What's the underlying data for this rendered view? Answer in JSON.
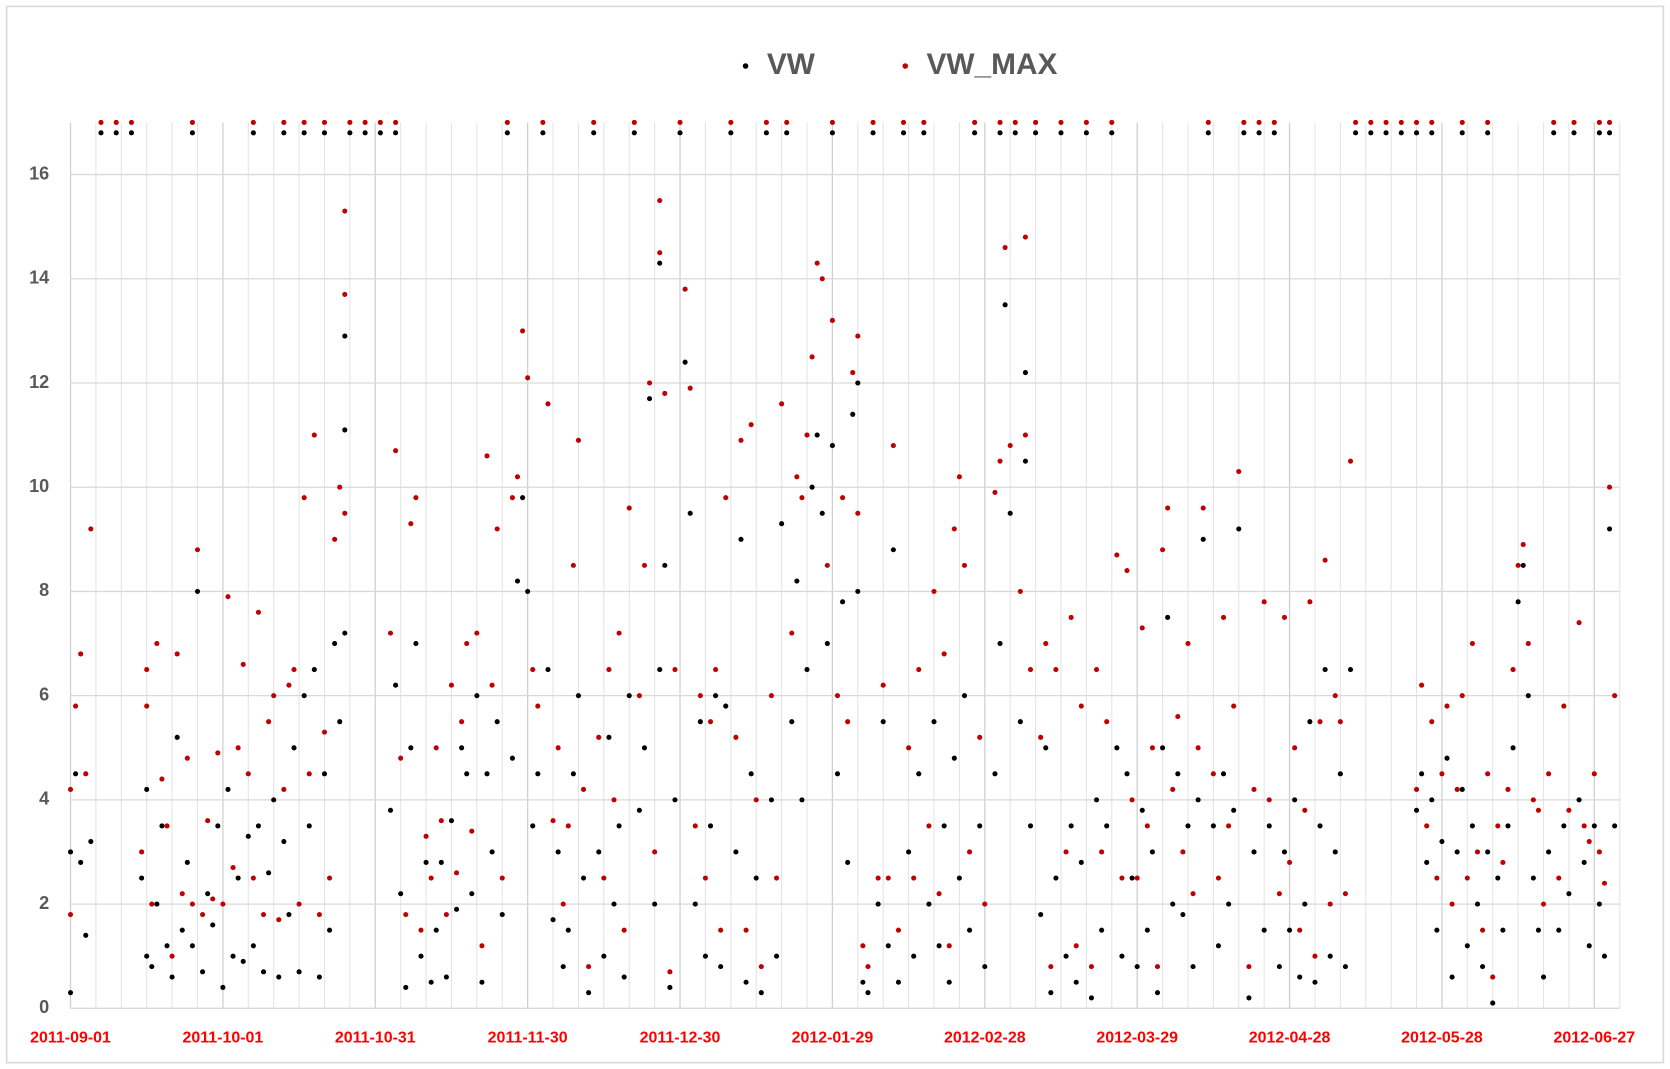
{
  "chart_data": {
    "type": "scatter",
    "x": [
      "2011-09-01",
      "2011-09-01",
      "2011-09-02",
      "2011-09-03",
      "2011-09-04",
      "2011-09-05",
      "2011-09-07",
      "2011-09-10",
      "2011-09-13",
      "2011-09-15",
      "2011-09-16",
      "2011-09-16",
      "2011-09-17",
      "2011-09-18",
      "2011-09-19",
      "2011-09-20",
      "2011-09-21",
      "2011-09-22",
      "2011-09-23",
      "2011-09-25",
      "2011-09-24",
      "2011-09-25",
      "2011-09-26",
      "2011-09-27",
      "2011-09-28",
      "2011-09-29",
      "2011-09-30",
      "2011-10-01",
      "2011-10-02",
      "2011-10-03",
      "2011-10-04",
      "2011-10-05",
      "2011-10-06",
      "2011-10-07",
      "2011-10-07",
      "2011-10-08",
      "2011-10-09",
      "2011-10-10",
      "2011-10-11",
      "2011-10-12",
      "2011-10-13",
      "2011-10-13",
      "2011-10-14",
      "2011-10-15",
      "2011-10-16",
      "2011-10-17",
      "2011-10-17",
      "2011-10-18",
      "2011-10-19",
      "2011-10-20",
      "2011-10-21",
      "2011-10-21",
      "2011-10-22",
      "2011-10-23",
      "2011-10-24",
      "2011-10-25",
      "2011-10-25",
      "2011-10-25",
      "2011-10-26",
      "2011-10-29",
      "2011-11-01",
      "2011-11-03",
      "2011-11-04",
      "2011-11-04",
      "2011-11-05",
      "2011-11-06",
      "2011-11-07",
      "2011-11-08",
      "2011-11-09",
      "2011-11-10",
      "2011-11-11",
      "2011-11-12",
      "2011-11-13",
      "2011-11-14",
      "2011-11-15",
      "2011-11-16",
      "2011-11-17",
      "2011-11-18",
      "2011-11-19",
      "2011-11-20",
      "2011-11-21",
      "2011-11-22",
      "2011-11-23",
      "2011-11-24",
      "2011-11-25",
      "2011-11-26",
      "2011-11-27",
      "2011-11-28",
      "2011-11-29",
      "2011-11-30",
      "2011-12-01",
      "2011-12-02",
      "2011-12-03",
      "2011-12-04",
      "2011-12-05",
      "2011-12-06",
      "2011-12-07",
      "2011-12-08",
      "2011-12-09",
      "2011-12-10",
      "2011-12-11",
      "2011-12-12",
      "2011-12-13",
      "2011-12-14",
      "2011-12-15",
      "2011-12-16",
      "2011-12-17",
      "2011-12-18",
      "2011-12-19",
      "2011-12-20",
      "2011-12-21",
      "2011-12-22",
      "2011-12-23",
      "2011-12-24",
      "2011-12-25",
      "2011-12-26",
      "2011-12-26",
      "2011-12-27",
      "2011-12-28",
      "2011-12-29",
      "2011-12-30",
      "2011-12-31",
      "2012-01-01",
      "2012-01-02",
      "2012-01-03",
      "2012-01-04",
      "2012-01-05",
      "2012-01-06",
      "2012-01-07",
      "2012-01-08",
      "2012-01-09",
      "2012-01-10",
      "2012-01-11",
      "2012-01-12",
      "2012-01-13",
      "2012-01-14",
      "2012-01-15",
      "2012-01-16",
      "2012-01-17",
      "2012-01-18",
      "2012-01-19",
      "2012-01-20",
      "2012-01-21",
      "2012-01-22",
      "2012-01-23",
      "2012-01-24",
      "2012-01-25",
      "2012-01-26",
      "2012-01-27",
      "2012-01-28",
      "2012-01-29",
      "2012-01-29",
      "2012-01-30",
      "2012-01-31",
      "2012-02-01",
      "2012-02-02",
      "2012-02-03",
      "2012-02-03",
      "2012-02-04",
      "2012-02-05",
      "2012-02-06",
      "2012-02-07",
      "2012-02-08",
      "2012-02-09",
      "2012-02-10",
      "2012-02-11",
      "2012-02-12",
      "2012-02-13",
      "2012-02-14",
      "2012-02-15",
      "2012-02-16",
      "2012-02-17",
      "2012-02-18",
      "2012-02-19",
      "2012-02-20",
      "2012-02-21",
      "2012-02-22",
      "2012-02-23",
      "2012-02-24",
      "2012-02-25",
      "2012-02-26",
      "2012-02-27",
      "2012-02-28",
      "2012-03-01",
      "2012-03-02",
      "2012-03-02",
      "2012-03-03",
      "2012-03-04",
      "2012-03-05",
      "2012-03-06",
      "2012-03-07",
      "2012-03-07",
      "2012-03-08",
      "2012-03-09",
      "2012-03-10",
      "2012-03-11",
      "2012-03-12",
      "2012-03-13",
      "2012-03-14",
      "2012-03-15",
      "2012-03-16",
      "2012-03-17",
      "2012-03-18",
      "2012-03-19",
      "2012-03-20",
      "2012-03-21",
      "2012-03-22",
      "2012-03-23",
      "2012-03-24",
      "2012-03-25",
      "2012-03-26",
      "2012-03-27",
      "2012-03-28",
      "2012-03-29",
      "2012-03-30",
      "2012-03-31",
      "2012-04-01",
      "2012-04-02",
      "2012-04-03",
      "2012-04-04",
      "2012-04-05",
      "2012-04-06",
      "2012-04-07",
      "2012-04-08",
      "2012-04-09",
      "2012-04-10",
      "2012-04-11",
      "2012-04-12",
      "2012-04-13",
      "2012-04-14",
      "2012-04-15",
      "2012-04-16",
      "2012-04-17",
      "2012-04-18",
      "2012-04-19",
      "2012-04-20",
      "2012-04-21",
      "2012-04-22",
      "2012-04-23",
      "2012-04-24",
      "2012-04-25",
      "2012-04-26",
      "2012-04-27",
      "2012-04-28",
      "2012-04-29",
      "2012-04-30",
      "2012-05-01",
      "2012-05-02",
      "2012-05-03",
      "2012-05-04",
      "2012-05-05",
      "2012-05-06",
      "2012-05-07",
      "2012-05-08",
      "2012-05-09",
      "2012-05-10",
      "2012-05-11",
      "2012-05-14",
      "2012-05-17",
      "2012-05-20",
      "2012-05-23",
      "2012-05-23",
      "2012-05-24",
      "2012-05-25",
      "2012-05-26",
      "2012-05-26",
      "2012-05-27",
      "2012-05-28",
      "2012-05-29",
      "2012-05-30",
      "2012-05-31",
      "2012-06-01",
      "2012-06-01",
      "2012-06-02",
      "2012-06-03",
      "2012-06-04",
      "2012-06-05",
      "2012-06-06",
      "2012-06-06",
      "2012-06-07",
      "2012-06-08",
      "2012-06-09",
      "2012-06-10",
      "2012-06-11",
      "2012-06-12",
      "2012-06-13",
      "2012-06-14",
      "2012-06-15",
      "2012-06-16",
      "2012-06-17",
      "2012-06-18",
      "2012-06-19",
      "2012-06-20",
      "2012-06-21",
      "2012-06-22",
      "2012-06-23",
      "2012-06-24",
      "2012-06-25",
      "2012-06-26",
      "2012-06-27",
      "2012-06-28",
      "2012-06-28",
      "2012-06-29",
      "2012-06-30",
      "2012-06-30",
      "2012-07-01"
    ],
    "series": [
      {
        "name": "VW",
        "color": "#000000",
        "values": [
          0.3,
          3.0,
          4.5,
          2.8,
          1.4,
          3.2,
          16.8,
          16.8,
          16.8,
          2.5,
          1.0,
          4.2,
          0.8,
          2.0,
          3.5,
          1.2,
          0.6,
          5.2,
          1.5,
          16.8,
          2.8,
          1.2,
          8.0,
          0.7,
          2.2,
          1.6,
          3.5,
          0.4,
          4.2,
          1.0,
          2.5,
          0.9,
          3.3,
          16.8,
          1.2,
          3.5,
          0.7,
          2.6,
          4.0,
          0.6,
          16.8,
          3.2,
          1.8,
          5.0,
          0.7,
          16.8,
          6.0,
          3.5,
          6.5,
          0.6,
          4.5,
          16.8,
          1.5,
          7.0,
          5.5,
          12.9,
          11.1,
          7.2,
          16.8,
          16.8,
          16.8,
          3.8,
          6.2,
          16.8,
          2.2,
          0.4,
          5.0,
          7.0,
          1.0,
          2.8,
          0.5,
          1.5,
          2.8,
          0.6,
          3.6,
          1.9,
          5.0,
          4.5,
          2.2,
          6.0,
          0.5,
          4.5,
          3.0,
          5.5,
          1.8,
          16.8,
          4.8,
          8.2,
          9.8,
          8.0,
          3.5,
          4.5,
          16.8,
          6.5,
          1.7,
          3.0,
          0.8,
          1.5,
          4.5,
          6.0,
          2.5,
          0.3,
          16.8,
          3.0,
          1.0,
          5.2,
          2.0,
          3.5,
          0.6,
          6.0,
          16.8,
          3.8,
          5.0,
          11.7,
          2.0,
          14.3,
          6.5,
          8.5,
          0.4,
          4.0,
          16.8,
          12.4,
          9.5,
          2.0,
          5.5,
          1.0,
          3.5,
          6.0,
          0.8,
          5.8,
          16.8,
          3.0,
          9.0,
          0.5,
          4.5,
          2.5,
          0.3,
          16.8,
          4.0,
          1.0,
          9.3,
          16.8,
          5.5,
          8.2,
          4.0,
          6.5,
          10.0,
          11.0,
          9.5,
          7.0,
          16.8,
          10.8,
          4.5,
          7.8,
          2.8,
          11.4,
          12.0,
          8.0,
          0.5,
          0.3,
          16.8,
          2.0,
          5.5,
          1.2,
          8.8,
          0.5,
          16.8,
          3.0,
          1.0,
          4.5,
          16.8,
          2.0,
          5.5,
          1.2,
          3.5,
          0.5,
          4.8,
          2.5,
          6.0,
          1.5,
          16.8,
          3.5,
          0.8,
          4.5,
          16.8,
          7.0,
          13.5,
          9.5,
          16.8,
          5.5,
          12.2,
          10.5,
          3.5,
          16.8,
          1.8,
          5.0,
          0.3,
          2.5,
          16.8,
          1.0,
          3.5,
          0.5,
          2.8,
          16.8,
          0.2,
          4.0,
          1.5,
          3.5,
          16.8,
          5.0,
          1.0,
          4.5,
          2.5,
          0.8,
          3.8,
          1.5,
          3.0,
          0.3,
          5.0,
          7.5,
          2.0,
          4.5,
          1.8,
          3.5,
          0.8,
          4.0,
          9.0,
          16.8,
          3.5,
          1.2,
          4.5,
          2.0,
          3.8,
          9.2,
          16.8,
          0.2,
          3.0,
          16.8,
          1.5,
          3.5,
          16.8,
          0.8,
          3.0,
          1.5,
          4.0,
          0.6,
          2.0,
          5.5,
          0.5,
          3.5,
          6.5,
          1.0,
          3.0,
          4.5,
          0.8,
          6.5,
          16.8,
          16.8,
          16.8,
          16.8,
          16.8,
          3.8,
          4.5,
          2.8,
          16.8,
          4.0,
          1.5,
          3.2,
          4.8,
          0.6,
          3.0,
          16.8,
          4.2,
          1.2,
          3.5,
          2.0,
          0.8,
          16.8,
          3.0,
          0.1,
          2.5,
          1.5,
          3.5,
          5.0,
          7.8,
          8.5,
          6.0,
          2.5,
          1.5,
          0.6,
          3.0,
          16.8,
          1.5,
          3.5,
          2.2,
          16.8,
          4.0,
          2.8,
          1.2,
          3.5,
          16.8,
          2.0,
          1.0,
          9.2,
          16.8,
          3.5
        ]
      },
      {
        "name": "VW_MAX",
        "color": "#c00000",
        "values": [
          1.8,
          4.2,
          5.8,
          6.8,
          4.5,
          9.2,
          17,
          17,
          17,
          3.0,
          6.5,
          5.8,
          2.0,
          7.0,
          4.4,
          3.5,
          1.0,
          6.8,
          2.2,
          17,
          4.8,
          2.0,
          8.8,
          1.8,
          3.6,
          2.1,
          4.9,
          2.0,
          7.9,
          2.7,
          5.0,
          6.6,
          4.5,
          17,
          2.5,
          7.6,
          1.8,
          5.5,
          6.0,
          1.7,
          17,
          4.2,
          6.2,
          6.5,
          2.0,
          17,
          9.8,
          4.5,
          11.0,
          1.8,
          5.3,
          17,
          2.5,
          9.0,
          10.0,
          15.3,
          13.7,
          9.5,
          17,
          17,
          17,
          7.2,
          10.7,
          17,
          4.8,
          1.8,
          9.3,
          9.8,
          1.5,
          3.3,
          2.5,
          5.0,
          3.6,
          1.8,
          6.2,
          2.6,
          5.5,
          7.0,
          3.4,
          7.2,
          1.2,
          10.6,
          6.2,
          9.2,
          2.5,
          17,
          9.8,
          10.2,
          13.0,
          12.1,
          6.5,
          5.8,
          17,
          11.6,
          3.6,
          5.0,
          2.0,
          3.5,
          8.5,
          10.9,
          4.2,
          0.8,
          17,
          5.2,
          2.5,
          6.5,
          4.0,
          7.2,
          1.5,
          9.6,
          17,
          6.0,
          8.5,
          12.0,
          3.0,
          15.5,
          14.5,
          11.8,
          0.7,
          6.5,
          17,
          13.8,
          11.9,
          3.5,
          6.0,
          2.5,
          5.5,
          6.5,
          1.5,
          9.8,
          17,
          5.2,
          10.9,
          1.5,
          11.2,
          4.0,
          0.8,
          17,
          6.0,
          2.5,
          11.6,
          17,
          7.2,
          10.2,
          9.8,
          11.0,
          12.5,
          14.3,
          14.0,
          8.5,
          17,
          13.2,
          6.0,
          9.8,
          5.5,
          12.2,
          12.9,
          9.5,
          1.2,
          0.8,
          17,
          2.5,
          6.2,
          2.5,
          10.8,
          1.5,
          17,
          5.0,
          2.5,
          6.5,
          17,
          3.5,
          8.0,
          2.2,
          6.8,
          1.2,
          9.2,
          10.2,
          8.5,
          3.0,
          17,
          5.2,
          2.0,
          9.9,
          17,
          10.5,
          14.6,
          10.8,
          17,
          8.0,
          14.8,
          11.0,
          6.5,
          17,
          5.2,
          7.0,
          0.8,
          6.5,
          17,
          3.0,
          7.5,
          1.2,
          5.8,
          17,
          0.8,
          6.5,
          3.0,
          5.5,
          17,
          8.7,
          2.5,
          8.4,
          4.0,
          2.5,
          7.3,
          3.5,
          5.0,
          0.8,
          8.8,
          9.6,
          4.2,
          5.6,
          3.0,
          7.0,
          2.2,
          5.0,
          9.6,
          17,
          4.5,
          2.5,
          7.5,
          3.5,
          5.8,
          10.3,
          17,
          0.8,
          4.2,
          17,
          7.8,
          4.0,
          17,
          2.2,
          7.5,
          2.8,
          5.0,
          1.5,
          3.8,
          7.8,
          1.0,
          5.5,
          8.6,
          2.0,
          6.0,
          5.5,
          2.2,
          10.5,
          17,
          17,
          17,
          17,
          17,
          4.2,
          6.2,
          3.5,
          17,
          5.5,
          2.5,
          4.5,
          5.8,
          2.0,
          4.2,
          17,
          6.0,
          2.5,
          7.0,
          3.0,
          1.5,
          17,
          4.5,
          0.6,
          3.5,
          2.8,
          4.2,
          6.5,
          8.5,
          8.9,
          7.0,
          4.0,
          3.8,
          2.0,
          4.5,
          17,
          2.5,
          5.8,
          3.8,
          17,
          7.4,
          3.5,
          3.2,
          4.5,
          17,
          3.0,
          2.4,
          10.0,
          17,
          6.0
        ]
      }
    ],
    "xlim": [
      "2011-09-01",
      "2012-07-02"
    ],
    "xticks": [
      "2011-09-01",
      "2011-10-01",
      "2011-10-31",
      "2011-11-30",
      "2011-12-30",
      "2012-01-29",
      "2012-02-28",
      "2012-03-29",
      "2012-04-28",
      "2012-05-28",
      "2012-06-27"
    ],
    "xminorticks": [
      "2011-09-06",
      "2011-09-11",
      "2011-09-16",
      "2011-09-21",
      "2011-09-26",
      "2011-10-06",
      "2011-10-11",
      "2011-10-16",
      "2011-10-21",
      "2011-10-26",
      "2011-11-05",
      "2011-11-10",
      "2011-11-15",
      "2011-11-20",
      "2011-11-25",
      "2011-12-05",
      "2011-12-10",
      "2011-12-15",
      "2011-12-20",
      "2011-12-25",
      "2012-01-04",
      "2012-01-09",
      "2012-01-14",
      "2012-01-19",
      "2012-01-24",
      "2012-02-03",
      "2012-02-08",
      "2012-02-13",
      "2012-02-18",
      "2012-02-23",
      "2012-03-04",
      "2012-03-09",
      "2012-03-14",
      "2012-03-19",
      "2012-03-24",
      "2012-04-03",
      "2012-04-08",
      "2012-04-13",
      "2012-04-18",
      "2012-04-23",
      "2012-05-03",
      "2012-05-08",
      "2012-05-13",
      "2012-05-18",
      "2012-05-23",
      "2012-06-02",
      "2012-06-07",
      "2012-06-12",
      "2012-06-17",
      "2012-06-22",
      "2012-07-02"
    ],
    "ylim": [
      0,
      17
    ],
    "yticks": [
      0,
      2,
      4,
      6,
      8,
      10,
      12,
      14,
      16
    ],
    "grid": true,
    "legend": "top"
  }
}
